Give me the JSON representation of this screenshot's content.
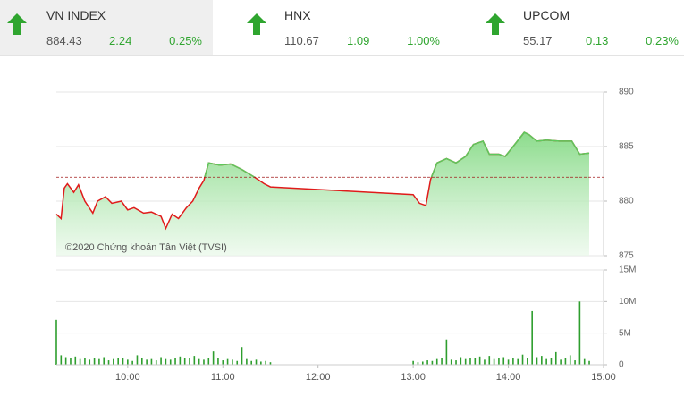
{
  "tickers": [
    {
      "name": "VN INDEX",
      "price": "884.43",
      "change": "2.24",
      "percent": "0.25%"
    },
    {
      "name": "HNX",
      "price": "110.67",
      "change": "1.09",
      "percent": "1.00%"
    },
    {
      "name": "UPCOM",
      "price": "55.17",
      "change": "0.13",
      "percent": "0.23%"
    }
  ],
  "chart_data": [
    {
      "type": "line",
      "annotation": "©2020 Chứng khoán Tân Việt (TVSI)",
      "reference": 882.19,
      "xlim": [
        555,
        900
      ],
      "ylim": [
        875,
        890
      ],
      "yticks": [
        875,
        880,
        885,
        890
      ],
      "grid": true,
      "up_color": "#5cc95c",
      "down_color": "#e01b1b",
      "x": [
        555,
        558,
        560,
        562,
        566,
        569,
        573,
        578,
        581,
        586,
        590,
        596,
        600,
        604,
        610,
        615,
        621,
        624,
        628,
        632,
        637,
        641,
        645,
        648,
        651,
        658,
        665,
        672,
        680,
        686,
        690,
        780,
        784,
        788,
        791,
        795,
        801,
        807,
        813,
        818,
        824,
        828,
        834,
        838,
        844,
        850,
        853,
        858,
        864,
        872,
        880,
        885,
        891
      ],
      "series": [
        {
          "name": "VN INDEX",
          "values": [
            878.8,
            878.4,
            881.2,
            881.6,
            880.8,
            881.5,
            880.0,
            878.9,
            880.0,
            880.4,
            879.8,
            880.0,
            879.2,
            879.4,
            878.9,
            879.0,
            878.6,
            877.5,
            878.8,
            878.4,
            879.4,
            880.0,
            881.2,
            881.9,
            883.5,
            883.3,
            883.4,
            882.9,
            882.2,
            881.6,
            881.3,
            880.6,
            879.8,
            879.6,
            882.0,
            883.5,
            883.9,
            883.5,
            884.1,
            885.2,
            885.5,
            884.3,
            884.3,
            884.1,
            885.2,
            886.3,
            886.1,
            885.5,
            885.6,
            885.5,
            885.5,
            884.3,
            884.4
          ]
        }
      ]
    },
    {
      "type": "bar",
      "xlim": [
        555,
        900
      ],
      "xticks": [
        {
          "value": 600,
          "label": "10:00"
        },
        {
          "value": 660,
          "label": "11:00"
        },
        {
          "value": 720,
          "label": "12:00"
        },
        {
          "value": 780,
          "label": "13:00"
        },
        {
          "value": 840,
          "label": "14:00"
        },
        {
          "value": 900,
          "label": "15:00"
        }
      ],
      "ylim": [
        0,
        15
      ],
      "yticks": [
        0,
        {
          "value": 5,
          "label": "5M"
        },
        {
          "value": 10,
          "label": "10M"
        },
        {
          "value": 15,
          "label": "15M"
        }
      ],
      "grid": true,
      "color": "#2e9e2e",
      "x": [
        555,
        558,
        561,
        564,
        567,
        570,
        573,
        576,
        579,
        582,
        585,
        588,
        591,
        594,
        597,
        600,
        603,
        606,
        609,
        612,
        615,
        618,
        621,
        624,
        627,
        630,
        633,
        636,
        639,
        642,
        645,
        648,
        651,
        654,
        657,
        660,
        663,
        666,
        669,
        672,
        675,
        678,
        681,
        684,
        687,
        690,
        780,
        783,
        786,
        789,
        792,
        795,
        798,
        801,
        804,
        807,
        810,
        813,
        816,
        819,
        822,
        825,
        828,
        831,
        834,
        837,
        840,
        843,
        846,
        849,
        852,
        855,
        858,
        861,
        864,
        867,
        870,
        873,
        876,
        879,
        882,
        885,
        888,
        891
      ],
      "values": [
        7.1,
        1.5,
        1.2,
        1.0,
        1.3,
        0.9,
        1.1,
        0.8,
        1.0,
        0.9,
        1.2,
        0.7,
        0.9,
        1.0,
        1.1,
        0.8,
        0.6,
        1.5,
        1.0,
        0.8,
        0.9,
        0.7,
        1.2,
        0.9,
        0.8,
        1.0,
        1.3,
        1.0,
        1.0,
        1.4,
        0.9,
        0.8,
        1.1,
        2.1,
        1.0,
        0.7,
        0.9,
        0.8,
        0.6,
        2.8,
        0.9,
        0.6,
        0.8,
        0.5,
        0.6,
        0.4,
        0.6,
        0.4,
        0.5,
        0.7,
        0.6,
        0.9,
        1.0,
        4.0,
        0.8,
        0.7,
        1.2,
        0.9,
        1.1,
        1.0,
        1.3,
        0.8,
        1.4,
        0.9,
        1.0,
        1.2,
        0.8,
        1.1,
        0.9,
        1.6,
        1.0,
        8.5,
        1.2,
        1.4,
        0.9,
        1.1,
        2.0,
        0.8,
        1.0,
        1.5,
        0.7,
        10,
        0.9,
        0.6
      ]
    }
  ]
}
